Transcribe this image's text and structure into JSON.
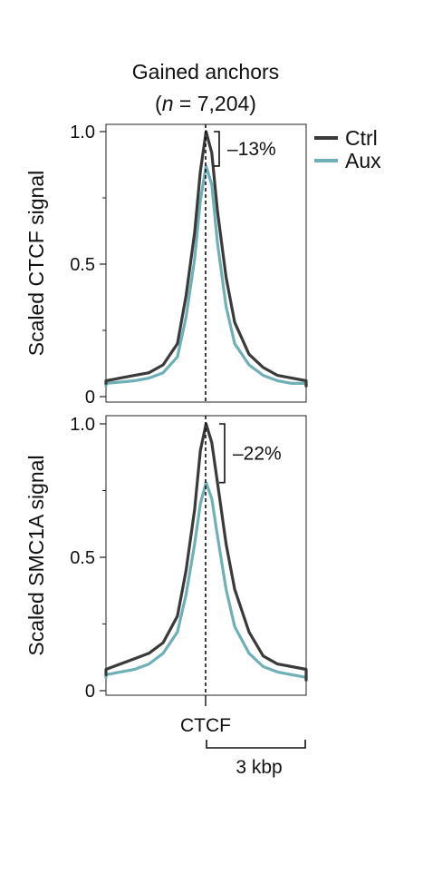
{
  "chart_data": [
    {
      "type": "line",
      "title": "Gained anchors",
      "subtitle": {
        "prefix": "(",
        "n_symbol": "n",
        "rest": " = 7,204)"
      },
      "ylabel": "Scaled CTCF signal",
      "ylim": [
        0,
        1.0
      ],
      "yticks": [
        0,
        0.5,
        1.0
      ],
      "ytick_labels": [
        "0",
        "0.5",
        "1.0"
      ],
      "annotation": "–13%",
      "annotation_range": [
        0.87,
        1.0
      ],
      "x": [
        -4.5,
        -3.5,
        -2.5,
        -2.0,
        -1.5,
        -1.0,
        -0.7,
        -0.4,
        -0.2,
        0,
        0.2,
        0.4,
        0.7,
        1.0,
        1.5,
        2.0,
        2.5,
        3.0,
        3.5,
        4.5
      ],
      "series": [
        {
          "name": "Ctrl",
          "color": "#3a3a3a",
          "values": [
            0.05,
            0.06,
            0.08,
            0.09,
            0.12,
            0.2,
            0.38,
            0.62,
            0.85,
            1.0,
            0.92,
            0.7,
            0.45,
            0.28,
            0.16,
            0.11,
            0.08,
            0.07,
            0.06,
            0.04
          ]
        },
        {
          "name": "Aux",
          "color": "#6fb0b6",
          "values": [
            0.04,
            0.05,
            0.06,
            0.07,
            0.09,
            0.15,
            0.3,
            0.52,
            0.74,
            0.87,
            0.8,
            0.58,
            0.34,
            0.2,
            0.12,
            0.08,
            0.06,
            0.05,
            0.05,
            0.04
          ]
        }
      ]
    },
    {
      "type": "line",
      "ylabel": "Scaled SMC1A signal",
      "ylim": [
        0,
        1.0
      ],
      "yticks": [
        0,
        0.5,
        1.0
      ],
      "ytick_labels": [
        "0",
        "0.5",
        "1.0"
      ],
      "annotation": "–22%",
      "annotation_range": [
        0.78,
        1.0
      ],
      "x": [
        -4.5,
        -3.5,
        -2.5,
        -2.0,
        -1.5,
        -1.0,
        -0.7,
        -0.4,
        -0.2,
        0,
        0.2,
        0.4,
        0.7,
        1.0,
        1.5,
        2.0,
        2.5,
        3.0,
        3.5,
        4.5
      ],
      "series": [
        {
          "name": "Ctrl",
          "color": "#3a3a3a",
          "values": [
            0.06,
            0.08,
            0.12,
            0.14,
            0.18,
            0.28,
            0.45,
            0.68,
            0.9,
            1.0,
            0.93,
            0.78,
            0.55,
            0.38,
            0.22,
            0.13,
            0.1,
            0.09,
            0.08,
            0.04
          ]
        },
        {
          "name": "Aux",
          "color": "#6fb0b6",
          "values": [
            0.05,
            0.06,
            0.08,
            0.1,
            0.14,
            0.22,
            0.36,
            0.55,
            0.7,
            0.78,
            0.72,
            0.58,
            0.38,
            0.24,
            0.14,
            0.09,
            0.07,
            0.06,
            0.05,
            0.04
          ]
        }
      ]
    }
  ],
  "legend": {
    "position": "right",
    "entries": [
      {
        "name": "Ctrl",
        "color": "#3a3a3a"
      },
      {
        "name": "Aux",
        "color": "#6fb0b6"
      }
    ]
  },
  "xaxis": {
    "center_label": "CTCF",
    "scale_bar_label": "3 kbp",
    "scale_bar_length": 3,
    "xlim": [
      -3.5,
      3.5
    ]
  }
}
